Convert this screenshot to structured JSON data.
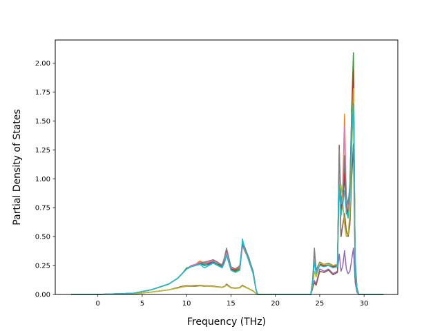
{
  "chart_data": {
    "type": "line",
    "title": "",
    "xlabel": "Frequency (THz)",
    "ylabel": "Partial Density of States",
    "xlim": [
      -4.8,
      33.8
    ],
    "ylim": [
      0.0,
      2.2
    ],
    "xticks": [
      0,
      5,
      10,
      15,
      20,
      25,
      30
    ],
    "xtick_labels": [
      "0",
      "5",
      "10",
      "15",
      "20",
      "25",
      "30"
    ],
    "yticks": [
      0.0,
      0.25,
      0.5,
      0.75,
      1.0,
      1.25,
      1.5,
      1.75,
      2.0
    ],
    "ytick_labels": [
      "0.00",
      "0.25",
      "0.50",
      "0.75",
      "1.00",
      "1.25",
      "1.50",
      "1.75",
      "2.00"
    ],
    "grid": false,
    "legend": "none",
    "series": [
      {
        "color": "#1f77b4",
        "x": [
          -3,
          0,
          2,
          4,
          6,
          8,
          9,
          9.5,
          10,
          10.5,
          11,
          11.5,
          12,
          12.5,
          13,
          13.5,
          14,
          14.3,
          14.5,
          15,
          15.5,
          16,
          16.3,
          16.5,
          17,
          17.5,
          17.8,
          18,
          20,
          22,
          24,
          24.2,
          24.4,
          24.6,
          25,
          25.5,
          26,
          26.5,
          27,
          27.2,
          27.4,
          27.6,
          27.8,
          28,
          28.2,
          28.4,
          28.6,
          28.8,
          29,
          29.2,
          29.4,
          30,
          32.2
        ],
        "y": [
          0,
          0,
          0.005,
          0.01,
          0.04,
          0.09,
          0.14,
          0.18,
          0.22,
          0.24,
          0.25,
          0.27,
          0.25,
          0.26,
          0.28,
          0.26,
          0.24,
          0.3,
          0.38,
          0.22,
          0.2,
          0.22,
          0.45,
          0.4,
          0.3,
          0.18,
          0.05,
          0,
          0,
          0,
          0,
          0.1,
          0.35,
          0.18,
          0.26,
          0.25,
          0.26,
          0.24,
          0.25,
          1.1,
          0.7,
          0.85,
          1.0,
          0.75,
          0.7,
          0.9,
          1.4,
          1.7,
          0.2,
          0.05,
          0,
          0,
          0
        ]
      },
      {
        "color": "#ff7f0e",
        "x": [
          -3,
          0,
          2,
          4,
          6,
          8,
          9,
          9.5,
          10,
          10.5,
          11,
          11.5,
          12,
          12.5,
          13,
          13.5,
          14,
          14.3,
          14.5,
          15,
          15.5,
          16,
          16.3,
          16.5,
          17,
          17.5,
          17.8,
          18,
          20,
          22,
          24,
          24.2,
          24.4,
          24.6,
          25,
          25.5,
          26,
          26.5,
          27,
          27.2,
          27.4,
          27.6,
          27.8,
          28,
          28.2,
          28.4,
          28.6,
          28.8,
          29,
          29.2,
          29.4,
          30,
          32.2
        ],
        "y": [
          0,
          0,
          0.005,
          0.01,
          0.04,
          0.09,
          0.14,
          0.18,
          0.22,
          0.25,
          0.26,
          0.29,
          0.27,
          0.28,
          0.3,
          0.27,
          0.25,
          0.29,
          0.35,
          0.23,
          0.21,
          0.23,
          0.43,
          0.38,
          0.31,
          0.2,
          0.05,
          0,
          0,
          0,
          0,
          0.12,
          0.3,
          0.2,
          0.27,
          0.26,
          0.27,
          0.25,
          0.26,
          1.0,
          0.75,
          0.9,
          1.56,
          0.8,
          0.72,
          0.95,
          1.5,
          1.8,
          0.25,
          0.05,
          0,
          0,
          0
        ]
      },
      {
        "color": "#2ca02c",
        "x": [
          -3,
          0,
          2,
          4,
          6,
          8,
          9,
          9.5,
          10,
          10.5,
          11,
          11.5,
          12,
          12.5,
          13,
          13.5,
          14,
          14.3,
          14.5,
          15,
          15.5,
          16,
          16.3,
          16.5,
          17,
          17.5,
          17.8,
          18,
          20,
          22,
          24,
          24.2,
          24.4,
          24.6,
          25,
          25.5,
          26,
          26.5,
          27,
          27.2,
          27.4,
          27.6,
          27.8,
          28,
          28.2,
          28.4,
          28.6,
          28.8,
          29,
          29.2,
          29.4,
          30,
          32.2
        ],
        "y": [
          0,
          0,
          0.005,
          0.01,
          0.04,
          0.09,
          0.14,
          0.18,
          0.23,
          0.24,
          0.25,
          0.28,
          0.26,
          0.27,
          0.29,
          0.26,
          0.25,
          0.31,
          0.36,
          0.21,
          0.2,
          0.22,
          0.44,
          0.41,
          0.32,
          0.19,
          0.05,
          0,
          0,
          0,
          0,
          0.1,
          0.33,
          0.19,
          0.27,
          0.24,
          0.26,
          0.24,
          0.25,
          1.2,
          0.72,
          0.8,
          1.1,
          0.7,
          0.68,
          0.88,
          1.6,
          2.09,
          0.2,
          0.05,
          0,
          0,
          0
        ]
      },
      {
        "color": "#d62728",
        "x": [
          -3,
          0,
          2,
          4,
          6,
          8,
          9,
          9.5,
          10,
          10.5,
          11,
          11.5,
          12,
          12.5,
          13,
          13.5,
          14,
          14.3,
          14.5,
          15,
          15.5,
          16,
          16.3,
          16.5,
          17,
          17.5,
          17.8,
          18,
          20,
          22,
          24,
          24.2,
          24.4,
          24.6,
          25,
          25.5,
          26,
          26.5,
          27,
          27.2,
          27.4,
          27.6,
          27.8,
          28,
          28.2,
          28.4,
          28.6,
          28.8,
          29,
          29.2,
          29.4,
          30,
          32.2
        ],
        "y": [
          0,
          0,
          0.005,
          0.01,
          0.04,
          0.09,
          0.14,
          0.18,
          0.22,
          0.24,
          0.26,
          0.27,
          0.28,
          0.27,
          0.29,
          0.27,
          0.25,
          0.3,
          0.37,
          0.22,
          0.21,
          0.24,
          0.42,
          0.4,
          0.3,
          0.2,
          0.05,
          0,
          0,
          0,
          0,
          0.11,
          0.32,
          0.19,
          0.26,
          0.25,
          0.26,
          0.24,
          0.25,
          1.15,
          0.74,
          0.82,
          1.05,
          0.76,
          0.7,
          0.9,
          1.45,
          1.95,
          0.22,
          0.05,
          0,
          0,
          0
        ]
      },
      {
        "color": "#9467bd",
        "x": [
          -3,
          0,
          2,
          4,
          6,
          8,
          9,
          9.5,
          10,
          10.5,
          11,
          11.5,
          12,
          12.5,
          13,
          13.5,
          14,
          14.3,
          14.5,
          15,
          15.5,
          16,
          16.3,
          16.5,
          17,
          17.5,
          17.8,
          18,
          20,
          22,
          24,
          24.2,
          24.4,
          24.6,
          25,
          25.5,
          26,
          26.5,
          27,
          27.2,
          27.4,
          27.6,
          27.8,
          28,
          28.2,
          28.4,
          28.6,
          28.8,
          29,
          29.2,
          29.4,
          30,
          32.2
        ],
        "y": [
          0,
          0,
          0.003,
          0.006,
          0.02,
          0.04,
          0.055,
          0.065,
          0.07,
          0.07,
          0.07,
          0.075,
          0.07,
          0.072,
          0.07,
          0.065,
          0.06,
          0.07,
          0.09,
          0.06,
          0.055,
          0.06,
          0.08,
          0.07,
          0.05,
          0.03,
          0.01,
          0,
          0,
          0,
          0,
          0.05,
          0.12,
          0.09,
          0.22,
          0.2,
          0.22,
          0.18,
          0.2,
          0.35,
          0.2,
          0.25,
          0.38,
          0.22,
          0.18,
          0.2,
          0.3,
          0.4,
          0.1,
          0.02,
          0,
          0,
          0
        ]
      },
      {
        "color": "#8c564b",
        "x": [
          -3,
          0,
          2,
          4,
          6,
          8,
          9,
          9.5,
          10,
          10.5,
          11,
          11.5,
          12,
          12.5,
          13,
          13.5,
          14,
          14.3,
          14.5,
          15,
          15.5,
          16,
          16.3,
          16.5,
          17,
          17.5,
          17.8,
          18,
          20,
          22,
          24,
          24.2,
          24.4,
          24.6,
          25,
          25.5,
          26,
          26.5,
          27,
          27.2,
          27.4,
          27.6,
          27.8,
          28,
          28.2,
          28.4,
          28.6,
          28.8,
          29,
          29.2,
          29.4,
          30,
          32.2
        ],
        "y": [
          0,
          0,
          0.003,
          0.006,
          0.02,
          0.04,
          0.06,
          0.07,
          0.075,
          0.075,
          0.078,
          0.08,
          0.075,
          0.074,
          0.072,
          0.066,
          0.062,
          0.07,
          0.085,
          0.058,
          0.054,
          0.058,
          0.078,
          0.068,
          0.05,
          0.03,
          0.01,
          0,
          0,
          0,
          0,
          0.06,
          0.1,
          0.08,
          0.2,
          0.19,
          0.21,
          0.17,
          0.19,
          1.29,
          0.5,
          0.6,
          0.7,
          0.55,
          0.5,
          0.6,
          1.0,
          1.3,
          0.15,
          0.03,
          0,
          0,
          0
        ]
      },
      {
        "color": "#e377c2",
        "x": [
          -3,
          0,
          2,
          4,
          6,
          8,
          9,
          9.5,
          10,
          10.5,
          11,
          11.5,
          12,
          12.5,
          13,
          13.5,
          14,
          14.3,
          14.5,
          15,
          15.5,
          16,
          16.3,
          16.5,
          17,
          17.5,
          17.8,
          18,
          20,
          22,
          24,
          24.2,
          24.4,
          24.6,
          25,
          25.5,
          26,
          26.5,
          27,
          27.2,
          27.4,
          27.6,
          27.8,
          28,
          28.2,
          28.4,
          28.6,
          28.8,
          29,
          29.2,
          29.4,
          30,
          32.2
        ],
        "y": [
          0,
          0,
          0.005,
          0.01,
          0.04,
          0.09,
          0.14,
          0.18,
          0.22,
          0.25,
          0.26,
          0.28,
          0.27,
          0.28,
          0.29,
          0.27,
          0.26,
          0.31,
          0.36,
          0.23,
          0.22,
          0.24,
          0.41,
          0.39,
          0.31,
          0.19,
          0.05,
          0,
          0,
          0,
          0,
          0.11,
          0.31,
          0.2,
          0.27,
          0.26,
          0.26,
          0.25,
          0.26,
          1.05,
          0.78,
          0.88,
          1.45,
          0.82,
          0.74,
          0.92,
          1.3,
          1.75,
          0.21,
          0.05,
          0,
          0,
          0
        ]
      },
      {
        "color": "#7f7f7f",
        "x": [
          -3,
          0,
          2,
          4,
          6,
          8,
          9,
          9.5,
          10,
          10.5,
          11,
          11.5,
          12,
          12.5,
          13,
          13.5,
          14,
          14.3,
          14.5,
          15,
          15.5,
          16,
          16.3,
          16.5,
          17,
          17.5,
          17.8,
          18,
          20,
          22,
          24,
          24.2,
          24.4,
          24.6,
          25,
          25.5,
          26,
          26.5,
          27,
          27.2,
          27.4,
          27.6,
          27.8,
          28,
          28.2,
          28.4,
          28.6,
          28.8,
          29,
          29.2,
          29.4,
          30,
          32.2
        ],
        "y": [
          0,
          0,
          0.005,
          0.01,
          0.04,
          0.09,
          0.14,
          0.18,
          0.22,
          0.24,
          0.25,
          0.27,
          0.28,
          0.29,
          0.3,
          0.28,
          0.25,
          0.33,
          0.4,
          0.24,
          0.22,
          0.25,
          0.46,
          0.42,
          0.32,
          0.2,
          0.05,
          0,
          0,
          0,
          0,
          0.12,
          0.4,
          0.21,
          0.28,
          0.26,
          0.27,
          0.25,
          0.26,
          1.25,
          0.8,
          0.9,
          1.2,
          0.85,
          0.78,
          0.95,
          1.56,
          1.6,
          0.3,
          0.06,
          0,
          0,
          0
        ]
      },
      {
        "color": "#bcbd22",
        "x": [
          -3,
          0,
          2,
          4,
          6,
          8,
          9,
          9.5,
          10,
          10.5,
          11,
          11.5,
          12,
          12.5,
          13,
          13.5,
          14,
          14.3,
          14.5,
          15,
          15.5,
          16,
          16.3,
          16.5,
          17,
          17.5,
          17.8,
          18,
          20,
          22,
          24,
          24.2,
          24.4,
          24.6,
          25,
          25.5,
          26,
          26.5,
          27,
          27.2,
          27.4,
          27.6,
          27.8,
          28,
          28.2,
          28.4,
          28.6,
          28.8,
          29,
          29.2,
          29.4,
          30,
          32.2
        ],
        "y": [
          0,
          0,
          0.003,
          0.006,
          0.02,
          0.04,
          0.055,
          0.065,
          0.07,
          0.072,
          0.074,
          0.076,
          0.072,
          0.07,
          0.068,
          0.064,
          0.06,
          0.068,
          0.082,
          0.056,
          0.052,
          0.056,
          0.074,
          0.066,
          0.048,
          0.028,
          0.01,
          0,
          0,
          0,
          0,
          0.08,
          0.2,
          0.15,
          0.27,
          0.26,
          0.26,
          0.25,
          0.26,
          0.9,
          0.95,
          0.8,
          0.6,
          0.5,
          0.52,
          0.7,
          1.2,
          1.78,
          0.2,
          0.04,
          0,
          0,
          0
        ]
      },
      {
        "color": "#17becf",
        "x": [
          -3,
          0,
          2,
          4,
          6,
          8,
          9,
          9.5,
          10,
          10.5,
          11,
          11.5,
          12,
          12.5,
          13,
          13.5,
          14,
          14.3,
          14.5,
          15,
          15.5,
          16,
          16.3,
          16.5,
          17,
          17.5,
          17.8,
          18,
          20,
          22,
          24,
          24.2,
          24.4,
          24.6,
          25,
          25.5,
          26,
          26.5,
          27,
          27.2,
          27.4,
          27.6,
          27.8,
          28,
          28.2,
          28.4,
          28.6,
          28.8,
          29,
          29.2,
          29.4,
          30,
          32.2
        ],
        "y": [
          0,
          0,
          0.005,
          0.01,
          0.04,
          0.09,
          0.14,
          0.18,
          0.22,
          0.24,
          0.25,
          0.26,
          0.23,
          0.25,
          0.27,
          0.25,
          0.23,
          0.28,
          0.34,
          0.21,
          0.19,
          0.21,
          0.48,
          0.4,
          0.29,
          0.18,
          0.05,
          0,
          0,
          0,
          0,
          0.1,
          0.28,
          0.18,
          0.25,
          0.24,
          0.25,
          0.23,
          0.24,
          0.95,
          0.68,
          0.78,
          0.9,
          0.72,
          0.66,
          0.85,
          1.35,
          1.65,
          0.18,
          0.04,
          0,
          0,
          0
        ]
      }
    ]
  }
}
